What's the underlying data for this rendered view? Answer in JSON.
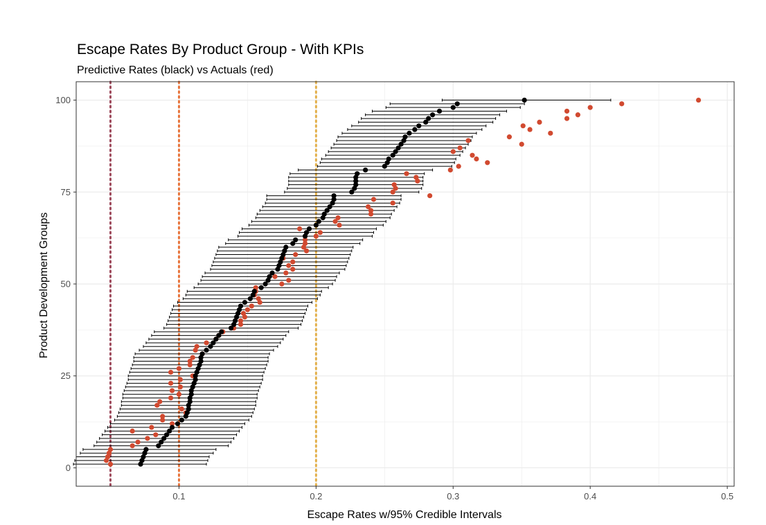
{
  "chart_data": {
    "type": "scatter",
    "title": "Escape Rates By Product Group - With KPIs",
    "subtitle": "Predictive Rates (black) vs Actuals (red)",
    "xlabel": "Escape Rates w/95% Credible Intervals",
    "ylabel": "Product Development Groups",
    "xlim": [
      0.025,
      0.505
    ],
    "ylim": [
      -5,
      105
    ],
    "x_ticks": [
      "0.1",
      "0.2",
      "0.3",
      "0.4",
      "0.5"
    ],
    "x_tick_values": [
      0.1,
      0.2,
      0.3,
      0.4,
      0.5
    ],
    "y_ticks": [
      "0",
      "25",
      "50",
      "75",
      "100"
    ],
    "y_tick_values": [
      0,
      25,
      50,
      75,
      100
    ],
    "grid": true,
    "legend": "none",
    "colors": {
      "predicted": "#000000",
      "actual": "#d14a30",
      "interval": "#000000",
      "kpi_lines": [
        "#9e4a5c",
        "#e8743b",
        "#e3b04b"
      ],
      "panel_border": "#333333",
      "grid": "#ebebeb"
    },
    "kpi_lines": [
      0.05,
      0.1,
      0.2
    ],
    "groups": [
      1,
      2,
      3,
      4,
      5,
      6,
      7,
      8,
      9,
      10,
      11,
      12,
      13,
      14,
      15,
      16,
      17,
      18,
      19,
      20,
      21,
      22,
      23,
      24,
      25,
      26,
      27,
      28,
      29,
      30,
      31,
      32,
      33,
      34,
      35,
      36,
      37,
      38,
      39,
      40,
      41,
      42,
      43,
      44,
      45,
      46,
      47,
      48,
      49,
      50,
      51,
      52,
      53,
      54,
      55,
      56,
      57,
      58,
      59,
      60,
      61,
      62,
      63,
      64,
      65,
      66,
      67,
      68,
      69,
      70,
      71,
      72,
      73,
      74,
      75,
      76,
      77,
      78,
      79,
      80,
      81,
      82,
      83,
      84,
      85,
      86,
      87,
      88,
      89,
      90,
      91,
      92,
      93,
      94,
      95,
      96,
      97,
      98,
      99,
      100
    ],
    "predicted": [
      0.072,
      0.073,
      0.074,
      0.075,
      0.076,
      0.085,
      0.087,
      0.089,
      0.091,
      0.093,
      0.095,
      0.099,
      0.102,
      0.105,
      0.106,
      0.107,
      0.107,
      0.108,
      0.108,
      0.109,
      0.109,
      0.11,
      0.111,
      0.112,
      0.112,
      0.113,
      0.114,
      0.115,
      0.116,
      0.116,
      0.117,
      0.12,
      0.123,
      0.125,
      0.127,
      0.129,
      0.131,
      0.138,
      0.14,
      0.141,
      0.142,
      0.143,
      0.144,
      0.145,
      0.148,
      0.152,
      0.154,
      0.155,
      0.16,
      0.163,
      0.165,
      0.166,
      0.168,
      0.172,
      0.173,
      0.174,
      0.175,
      0.176,
      0.177,
      0.178,
      0.183,
      0.185,
      0.192,
      0.193,
      0.195,
      0.2,
      0.202,
      0.205,
      0.206,
      0.208,
      0.21,
      0.212,
      0.213,
      0.213,
      0.226,
      0.228,
      0.229,
      0.229,
      0.229,
      0.23,
      0.236,
      0.25,
      0.252,
      0.253,
      0.256,
      0.258,
      0.26,
      0.262,
      0.264,
      0.265,
      0.268,
      0.272,
      0.275,
      0.28,
      0.282,
      0.285,
      0.29,
      0.3,
      0.303,
      0.352
    ],
    "lower": [
      0.023,
      0.024,
      0.025,
      0.028,
      0.03,
      0.038,
      0.04,
      0.042,
      0.044,
      0.046,
      0.048,
      0.05,
      0.053,
      0.055,
      0.056,
      0.057,
      0.058,
      0.058,
      0.059,
      0.059,
      0.06,
      0.061,
      0.062,
      0.063,
      0.063,
      0.064,
      0.065,
      0.066,
      0.067,
      0.067,
      0.068,
      0.071,
      0.074,
      0.076,
      0.078,
      0.08,
      0.082,
      0.089,
      0.091,
      0.092,
      0.093,
      0.094,
      0.095,
      0.096,
      0.099,
      0.103,
      0.105,
      0.106,
      0.111,
      0.114,
      0.116,
      0.117,
      0.119,
      0.123,
      0.124,
      0.125,
      0.126,
      0.127,
      0.128,
      0.129,
      0.134,
      0.136,
      0.143,
      0.144,
      0.146,
      0.151,
      0.153,
      0.156,
      0.157,
      0.159,
      0.161,
      0.163,
      0.164,
      0.164,
      0.177,
      0.179,
      0.18,
      0.18,
      0.18,
      0.181,
      0.187,
      0.201,
      0.203,
      0.204,
      0.207,
      0.209,
      0.211,
      0.213,
      0.215,
      0.216,
      0.219,
      0.223,
      0.226,
      0.231,
      0.233,
      0.236,
      0.241,
      0.251,
      0.254,
      0.292
    ],
    "upper": [
      0.12,
      0.121,
      0.122,
      0.125,
      0.127,
      0.136,
      0.138,
      0.14,
      0.142,
      0.144,
      0.146,
      0.148,
      0.151,
      0.153,
      0.154,
      0.155,
      0.156,
      0.156,
      0.157,
      0.157,
      0.158,
      0.159,
      0.16,
      0.161,
      0.161,
      0.162,
      0.163,
      0.164,
      0.165,
      0.165,
      0.166,
      0.169,
      0.172,
      0.174,
      0.176,
      0.178,
      0.18,
      0.187,
      0.189,
      0.19,
      0.191,
      0.192,
      0.193,
      0.194,
      0.197,
      0.201,
      0.203,
      0.204,
      0.209,
      0.212,
      0.214,
      0.215,
      0.217,
      0.221,
      0.222,
      0.223,
      0.224,
      0.225,
      0.226,
      0.227,
      0.232,
      0.234,
      0.241,
      0.242,
      0.244,
      0.249,
      0.251,
      0.254,
      0.255,
      0.257,
      0.259,
      0.261,
      0.262,
      0.262,
      0.275,
      0.277,
      0.278,
      0.278,
      0.278,
      0.279,
      0.285,
      0.299,
      0.301,
      0.302,
      0.305,
      0.307,
      0.309,
      0.311,
      0.313,
      0.314,
      0.317,
      0.321,
      0.324,
      0.329,
      0.331,
      0.334,
      0.339,
      0.349,
      0.352,
      0.415
    ],
    "actual": [
      0.05,
      0.047,
      0.048,
      0.049,
      0.05,
      0.066,
      0.07,
      0.077,
      0.083,
      0.066,
      0.08,
      0.095,
      0.088,
      0.088,
      0.105,
      0.102,
      0.084,
      0.086,
      0.094,
      0.1,
      0.095,
      0.101,
      0.094,
      0.101,
      0.11,
      0.094,
      0.1,
      0.108,
      0.108,
      0.11,
      0.117,
      0.112,
      0.113,
      0.12,
      0.127,
      0.129,
      0.132,
      0.14,
      0.145,
      0.145,
      0.148,
      0.147,
      0.15,
      0.153,
      0.159,
      0.158,
      0.155,
      0.156,
      0.156,
      0.175,
      0.18,
      0.17,
      0.178,
      0.183,
      0.18,
      0.183,
      0.176,
      0.185,
      0.193,
      0.191,
      0.192,
      0.192,
      0.2,
      0.203,
      0.188,
      0.217,
      0.214,
      0.216,
      0.24,
      0.24,
      0.238,
      0.256,
      0.242,
      0.283,
      0.256,
      0.258,
      0.257,
      0.274,
      0.273,
      0.266,
      0.298,
      0.304,
      0.325,
      0.317,
      0.314,
      0.3,
      0.305,
      0.35,
      0.311,
      0.341,
      0.371,
      0.356,
      0.351,
      0.363,
      0.383,
      0.391,
      0.383,
      0.4,
      0.423,
      0.479
    ]
  }
}
